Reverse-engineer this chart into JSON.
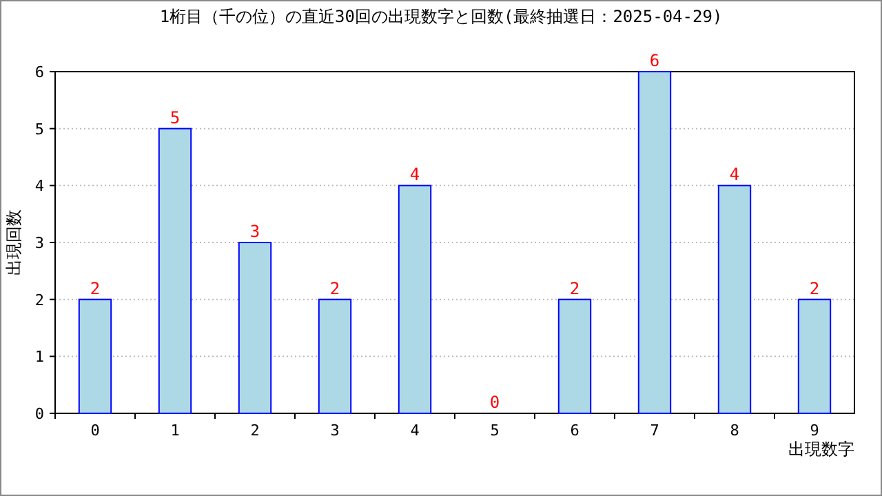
{
  "chart_data": {
    "type": "bar",
    "title": "1桁目（千の位）の直近30回の出現数字と回数(最終抽選日：2025-04-29)",
    "xlabel": "出現数字",
    "ylabel": "出現回数",
    "categories": [
      "0",
      "1",
      "2",
      "3",
      "4",
      "5",
      "6",
      "7",
      "8",
      "9"
    ],
    "values": [
      2,
      5,
      3,
      2,
      4,
      0,
      2,
      6,
      4,
      2
    ],
    "color": "#add8e6",
    "ylim": [
      0,
      6
    ],
    "yticks": [
      0,
      1,
      2,
      3,
      4,
      5,
      6
    ],
    "grid": "y",
    "data_labels": true
  }
}
